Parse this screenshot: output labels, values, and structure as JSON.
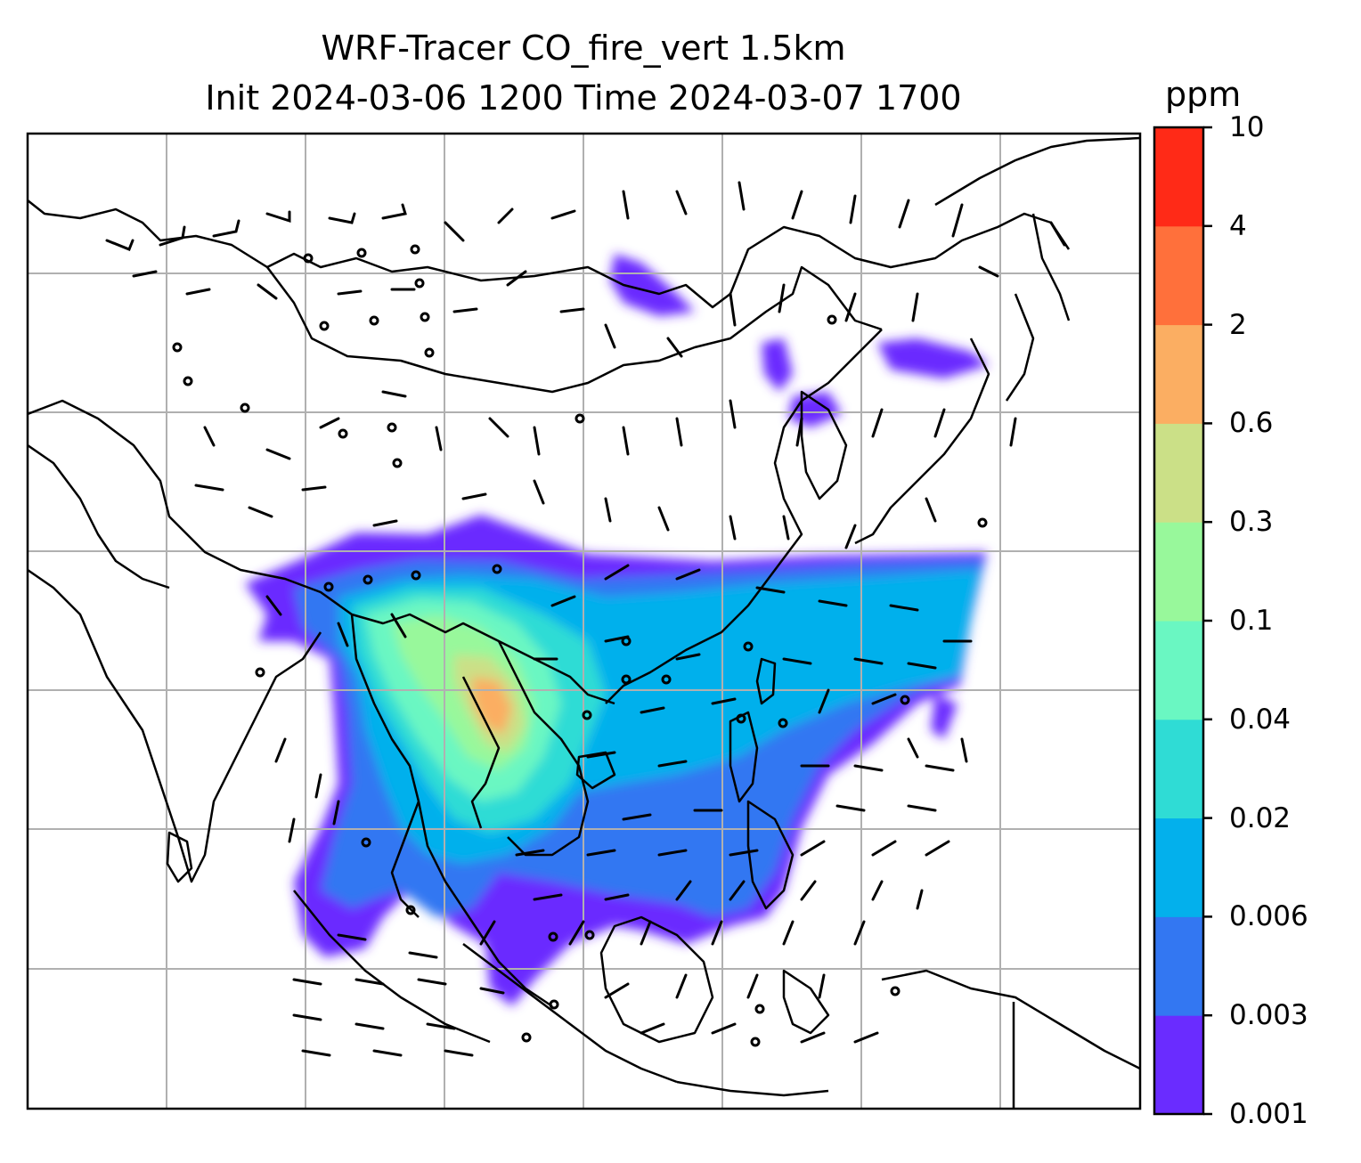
{
  "title": {
    "line1": "WRF-Tracer CO_fire_vert 1.5km",
    "line2": "Init 2024-03-06 1200 Time 2024-03-07 1700"
  },
  "colorbar": {
    "unit": "ppm",
    "levels": [
      "0.001",
      "0.003",
      "0.006",
      "0.02",
      "0.04",
      "0.1",
      "0.3",
      "0.6",
      "2",
      "4",
      "10"
    ],
    "colors": [
      "#6a2cff",
      "#3377f2",
      "#03b0ec",
      "#2fdcd5",
      "#6af7c2",
      "#98f89b",
      "#cbe087",
      "#fbae62",
      "#ff703b",
      "#ff2a17"
    ]
  },
  "map": {
    "features": [
      "coastlines",
      "country-borders",
      "gridlines",
      "wind-barbs",
      "co-concentration-field"
    ]
  }
}
